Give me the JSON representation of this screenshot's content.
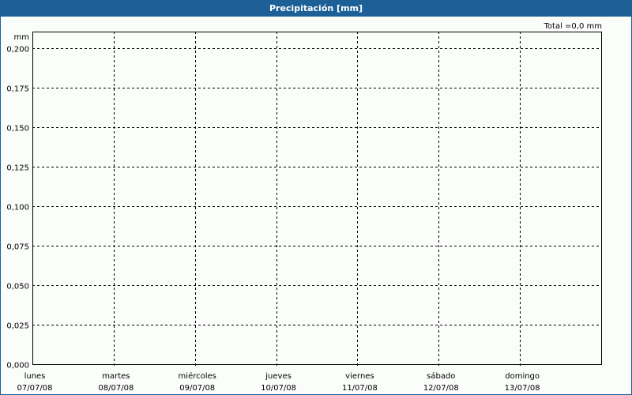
{
  "window": {
    "title": "Precipitación [mm]"
  },
  "chart_data": {
    "type": "bar",
    "title": "Precipitación [mm]",
    "ylabel": "mm",
    "total_label": "Total =0,0 mm",
    "categories": [
      {
        "day": "lunes",
        "date": "07/07/08"
      },
      {
        "day": "martes",
        "date": "08/07/08"
      },
      {
        "day": "miércoles",
        "date": "09/07/08"
      },
      {
        "day": "jueves",
        "date": "10/07/08"
      },
      {
        "day": "viernes",
        "date": "11/07/08"
      },
      {
        "day": "sábado",
        "date": "12/07/08"
      },
      {
        "day": "domingo",
        "date": "13/07/08"
      }
    ],
    "values": [
      0,
      0,
      0,
      0,
      0,
      0,
      0
    ],
    "ylim": [
      0,
      0.2105
    ],
    "yticks": [
      "0,000",
      "0,025",
      "0,050",
      "0,075",
      "0,100",
      "0,125",
      "0,150",
      "0,175",
      "0,200"
    ],
    "ytick_values": [
      0,
      0.025,
      0.05,
      0.075,
      0.1,
      0.125,
      0.15,
      0.175,
      0.2
    ],
    "grid": true,
    "grid_style": "dashed"
  }
}
